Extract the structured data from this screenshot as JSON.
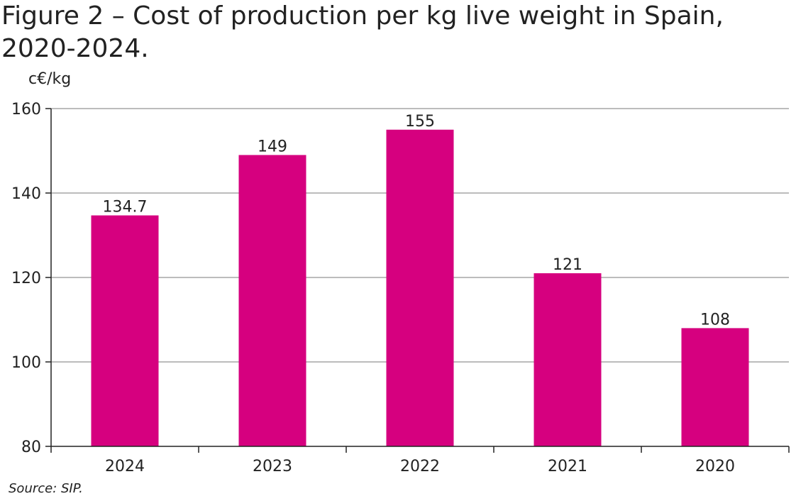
{
  "chart_data": {
    "type": "bar",
    "title": "Figure 2 – Cost of production per kg live weight in Spain, 2020-2024.",
    "ylabel": "c€/kg",
    "xlabel": "",
    "categories": [
      "2024",
      "2023",
      "2022",
      "2021",
      "2020"
    ],
    "values": [
      134.7,
      149,
      155,
      121,
      108
    ],
    "value_labels": [
      "134.7",
      "149",
      "155",
      "121",
      "108"
    ],
    "ylim": [
      80,
      160
    ],
    "yticks": [
      80,
      100,
      120,
      140,
      160
    ],
    "grid": true,
    "bar_color": "#d6007f",
    "source": "Source: SIP."
  }
}
